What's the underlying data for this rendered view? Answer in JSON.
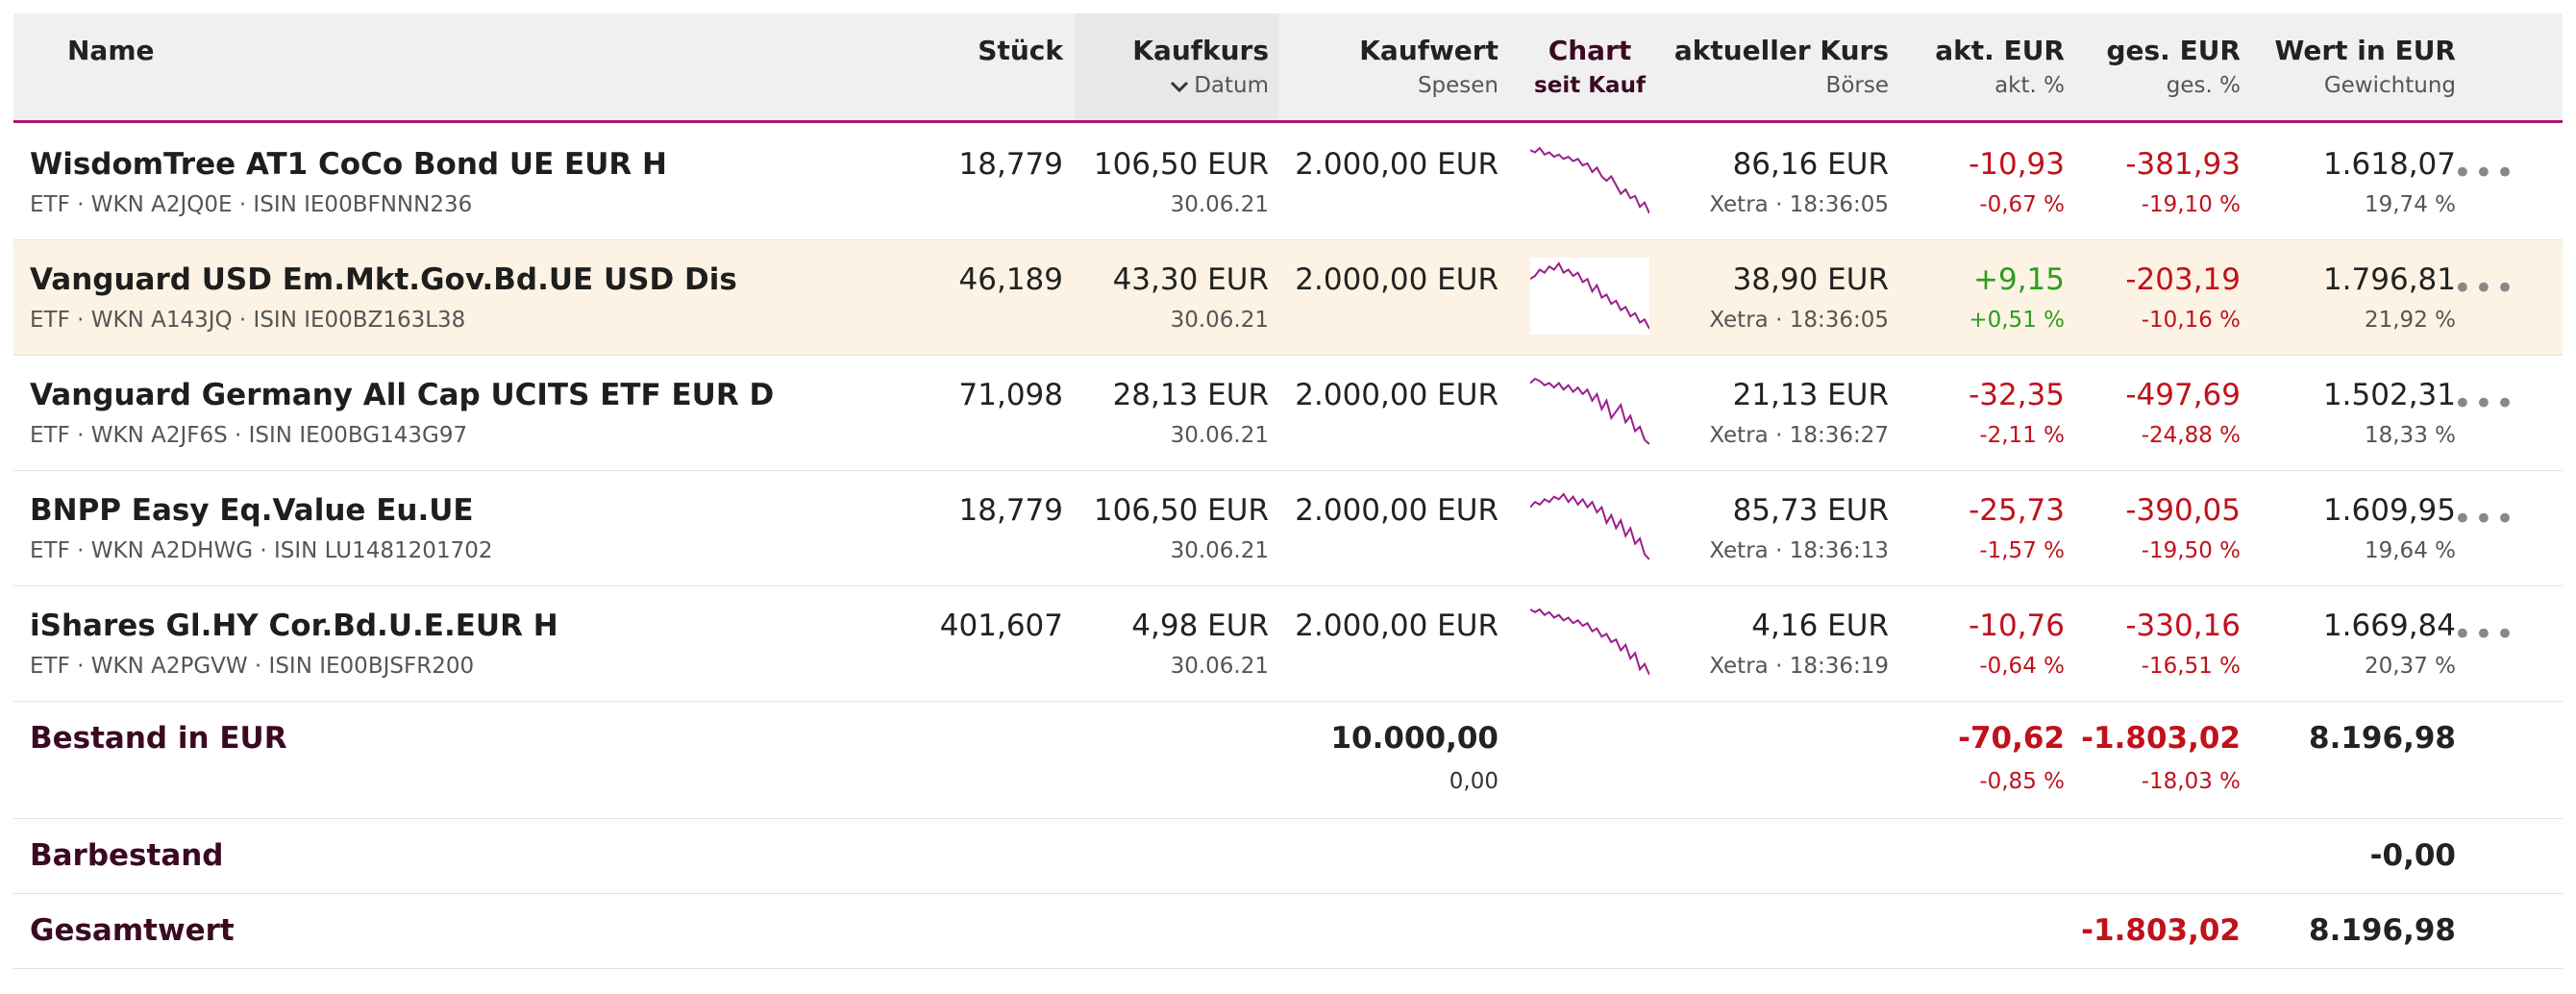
{
  "header": {
    "name": "Name",
    "stueck": "Stück",
    "kaufkurs": "Kaufkurs",
    "datum": "Datum",
    "kaufwert": "Kaufwert",
    "spesen": "Spesen",
    "chart": "Chart",
    "seit_kauf": "seit Kauf",
    "aktueller_kurs": "aktueller Kurs",
    "boerse": "Börse",
    "akt_eur": "akt. EUR",
    "akt_pct": "akt. %",
    "ges_eur": "ges. EUR",
    "ges_pct": "ges. %",
    "wert_eur": "Wert in EUR",
    "gewichtung": "Gewichtung",
    "sort_icon": "chevron-down-icon"
  },
  "rows": [
    {
      "name": "WisdomTree AT1 CoCo Bond UE EUR H",
      "meta": "ETF · WKN A2JQ0E · ISIN IE00BFNNN236",
      "stueck": "18,779",
      "kaufkurs": "106,50 EUR",
      "datum": "30.06.21",
      "kaufwert": "2.000,00 EUR",
      "kurs": "86,16 EUR",
      "boerse": "Xetra · 18:36:05",
      "akt_eur": "-10,93",
      "akt_pct": "-0,67 %",
      "ges_eur": "-381,93",
      "ges_pct": "-19,10 %",
      "wert": "1.618,07",
      "gewichtung": "19,74 %",
      "spark": [
        100,
        99,
        101,
        98,
        99,
        97,
        98,
        96,
        97,
        95,
        96,
        93,
        94,
        90,
        92,
        88,
        86,
        88,
        84,
        80,
        82,
        78,
        79,
        74,
        76,
        71
      ]
    },
    {
      "name": "Vanguard USD Em.Mkt.Gov.Bd.UE USD Dis",
      "meta": "ETF · WKN A143JQ · ISIN IE00BZ163L38",
      "stueck": "46,189",
      "kaufkurs": "43,30 EUR",
      "datum": "30.06.21",
      "kaufwert": "2.000,00 EUR",
      "kurs": "38,90 EUR",
      "boerse": "Xetra · 18:36:05",
      "akt_eur": "+9,15",
      "akt_pct": "+0,51 %",
      "ges_eur": "-203,19",
      "ges_pct": "-10,16 %",
      "wert": "1.796,81",
      "gewichtung": "21,92 %",
      "spark": [
        96,
        97,
        99,
        98,
        100,
        99,
        101,
        98,
        99,
        97,
        98,
        95,
        96,
        92,
        94,
        90,
        91,
        88,
        89,
        86,
        87,
        84,
        85,
        82,
        83,
        80
      ]
    },
    {
      "name": "Vanguard Germany All Cap UCITS ETF EUR D",
      "meta": "ETF · WKN A2JF6S · ISIN IE00BG143G97",
      "stueck": "71,098",
      "kaufkurs": "28,13 EUR",
      "datum": "30.06.21",
      "kaufwert": "2.000,00 EUR",
      "kurs": "21,13 EUR",
      "boerse": "Xetra · 18:36:27",
      "akt_eur": "-32,35",
      "akt_pct": "-2,11 %",
      "ges_eur": "-497,69",
      "ges_pct": "-24,88 %",
      "wert": "1.502,31",
      "gewichtung": "18,33 %",
      "spark": [
        98,
        100,
        99,
        97,
        98,
        96,
        98,
        95,
        97,
        94,
        96,
        93,
        95,
        90,
        93,
        86,
        90,
        82,
        85,
        88,
        80,
        83,
        76,
        78,
        72,
        70
      ]
    },
    {
      "name": "BNPP Easy Eq.Value Eu.UE",
      "meta": "ETF · WKN A2DHWG · ISIN LU1481201702",
      "stueck": "18,779",
      "kaufkurs": "106,50 EUR",
      "datum": "30.06.21",
      "kaufwert": "2.000,00 EUR",
      "kurs": "85,73 EUR",
      "boerse": "Xetra · 18:36:13",
      "akt_eur": "-25,73",
      "akt_pct": "-1,57 %",
      "ges_eur": "-390,05",
      "ges_pct": "-19,50 %",
      "wert": "1.609,95",
      "gewichtung": "19,64 %",
      "spark": [
        96,
        98,
        97,
        99,
        98,
        100,
        99,
        101,
        98,
        100,
        97,
        99,
        96,
        98,
        94,
        96,
        90,
        93,
        88,
        91,
        85,
        88,
        82,
        84,
        78,
        76
      ]
    },
    {
      "name": "iShares Gl.HY Cor.Bd.U.E.EUR H",
      "meta": "ETF · WKN A2PGVW · ISIN IE00BJSFR200",
      "stueck": "401,607",
      "kaufkurs": "4,98 EUR",
      "datum": "30.06.21",
      "kaufwert": "2.000,00 EUR",
      "kurs": "4,16 EUR",
      "boerse": "Xetra · 18:36:19",
      "akt_eur": "-10,76",
      "akt_pct": "-0,64 %",
      "ges_eur": "-330,16",
      "ges_pct": "-16,51 %",
      "wert": "1.669,84",
      "gewichtung": "20,37 %",
      "spark": [
        100,
        99,
        100,
        98,
        99,
        97,
        98,
        96,
        97,
        95,
        96,
        94,
        95,
        92,
        93,
        90,
        91,
        88,
        89,
        85,
        87,
        82,
        84,
        78,
        80,
        76
      ]
    }
  ],
  "bestand": {
    "label": "Bestand in EUR",
    "kaufwert": "10.000,00",
    "spesen": "0,00",
    "akt_eur": "-70,62",
    "akt_pct": "-0,85 %",
    "ges_eur": "-1.803,02",
    "ges_pct": "-18,03 %",
    "wert": "8.196,98"
  },
  "barbestand": {
    "label": "Barbestand",
    "wert": "-0,00"
  },
  "gesamtwert": {
    "label": "Gesamtwert",
    "ges_eur": "-1.803,02",
    "wert": "8.196,98"
  },
  "more_label": "•••",
  "colors": {
    "accent": "#b0127c",
    "negative": "#c0121b",
    "positive": "#2a9d1e",
    "sparkline": "#9b1e8c",
    "highlight_row": "#fcf3e4"
  }
}
